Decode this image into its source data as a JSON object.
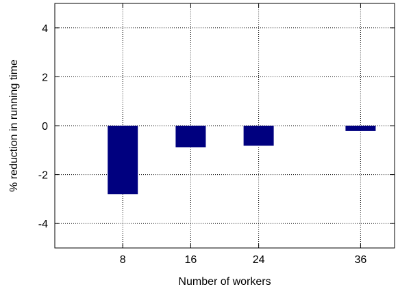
{
  "chart_data": {
    "type": "bar",
    "title": "",
    "xlabel": "Number of workers",
    "ylabel": "% reduction in running time",
    "categories": [
      "8",
      "16",
      "24",
      "36"
    ],
    "x": [
      8,
      16,
      24,
      36
    ],
    "values": [
      -2.8,
      -0.88,
      -0.82,
      -0.22
    ],
    "xlim": [
      0,
      40
    ],
    "ylim": [
      -5,
      5
    ],
    "yticks": [
      -4,
      -2,
      0,
      2,
      4
    ],
    "ytick_labels": [
      "-4",
      "-2",
      "0",
      "2",
      "4"
    ],
    "grid": true,
    "legend": "none",
    "bar_color": "#00007f"
  }
}
